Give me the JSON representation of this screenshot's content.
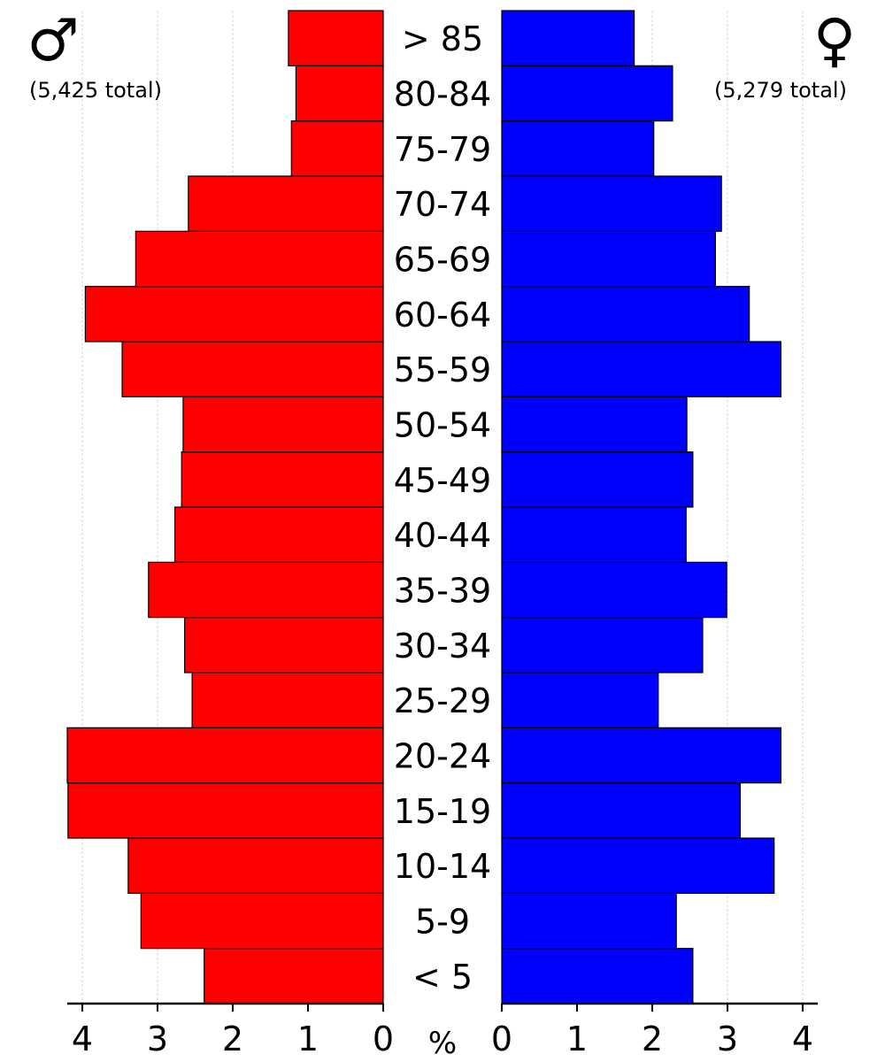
{
  "chart_data": {
    "type": "bar",
    "orientation": "horizontal",
    "categories": [
      "< 5",
      "5-9",
      "10-14",
      "15-19",
      "20-24",
      "25-29",
      "30-34",
      "35-39",
      "40-44",
      "45-49",
      "50-54",
      "55-59",
      "60-64",
      "65-69",
      "70-74",
      "75-79",
      "80-84",
      "> 85"
    ],
    "series": [
      {
        "name": "♂",
        "color": "#ff0000",
        "values": [
          2.38,
          3.22,
          3.39,
          4.19,
          4.2,
          2.54,
          2.64,
          3.12,
          2.77,
          2.68,
          2.66,
          3.47,
          3.96,
          3.29,
          2.59,
          1.22,
          1.16,
          1.26
        ]
      },
      {
        "name": "♀",
        "color": "#0000ff",
        "values": [
          2.54,
          2.32,
          3.62,
          3.17,
          3.71,
          2.08,
          2.67,
          2.99,
          2.45,
          2.54,
          2.46,
          3.71,
          3.29,
          2.84,
          2.92,
          2.02,
          2.27,
          1.76
        ]
      }
    ],
    "male_total_label": "(5,425 total)",
    "female_total_label": "(5,279 total)",
    "male_symbol": "♂",
    "female_symbol": "♀",
    "xlabel": "%",
    "xlim": [
      0,
      4.2
    ],
    "xticks": [
      "4",
      "3",
      "2",
      "1",
      "0",
      "0",
      "1",
      "2",
      "3",
      "4"
    ],
    "grid": true
  }
}
